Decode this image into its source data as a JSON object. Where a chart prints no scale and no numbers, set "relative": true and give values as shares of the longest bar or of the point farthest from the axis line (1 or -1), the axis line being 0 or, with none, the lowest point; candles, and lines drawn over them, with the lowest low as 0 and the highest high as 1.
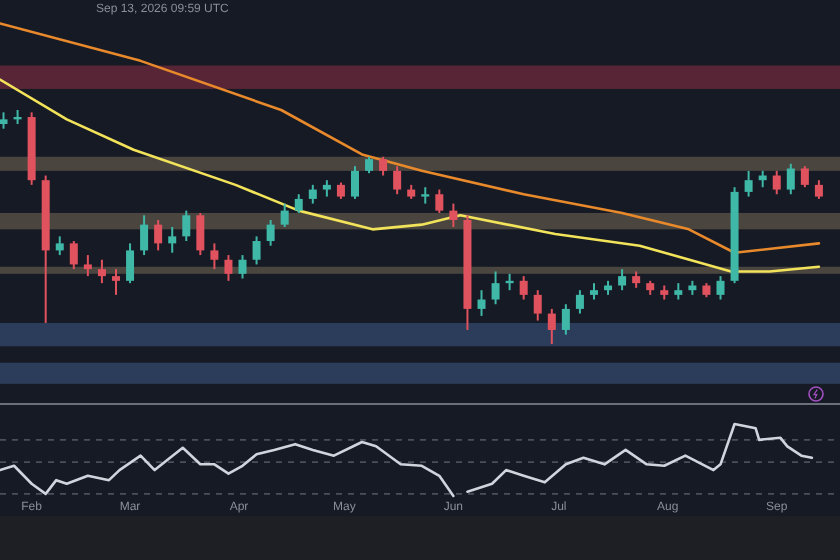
{
  "chart_data": [
    {
      "type": "candlestick",
      "relative": true,
      "annotations": [
        "Sep 13, 2026 09:59 UTC"
      ],
      "xlim": [
        "2026-01-23",
        "2026-09-19"
      ],
      "x": [
        "2026-01-24",
        "2026-01-28",
        "2026-02-01",
        "2026-02-05",
        "2026-02-09",
        "2026-02-13",
        "2026-02-17",
        "2026-02-21",
        "2026-02-25",
        "2026-03-01",
        "2026-03-05",
        "2026-03-09",
        "2026-03-13",
        "2026-03-17",
        "2026-03-21",
        "2026-03-25",
        "2026-03-29",
        "2026-04-02",
        "2026-04-06",
        "2026-04-10",
        "2026-04-14",
        "2026-04-18",
        "2026-04-22",
        "2026-04-26",
        "2026-04-30",
        "2026-05-04",
        "2026-05-08",
        "2026-05-12",
        "2026-05-16",
        "2026-05-20",
        "2026-05-24",
        "2026-05-28",
        "2026-06-01",
        "2026-06-05",
        "2026-06-09",
        "2026-06-13",
        "2026-06-17",
        "2026-06-21",
        "2026-06-25",
        "2026-06-29",
        "2026-07-03",
        "2026-07-07",
        "2026-07-11",
        "2026-07-15",
        "2026-07-19",
        "2026-07-23",
        "2026-07-27",
        "2026-07-31",
        "2026-08-04",
        "2026-08-08",
        "2026-08-12",
        "2026-08-16",
        "2026-08-20",
        "2026-08-24",
        "2026-08-28",
        "2026-09-01",
        "2026-09-05",
        "2026-09-09",
        "2026-09-13"
      ],
      "ohlc": [
        [
          0.94,
          0.99,
          0.92,
          0.96
        ],
        [
          0.96,
          1.0,
          0.94,
          0.97
        ],
        [
          0.97,
          0.99,
          0.68,
          0.7
        ],
        [
          0.7,
          0.72,
          0.09,
          0.4
        ],
        [
          0.4,
          0.46,
          0.38,
          0.43
        ],
        [
          0.43,
          0.44,
          0.32,
          0.34
        ],
        [
          0.34,
          0.38,
          0.29,
          0.32
        ],
        [
          0.32,
          0.36,
          0.26,
          0.29
        ],
        [
          0.29,
          0.32,
          0.21,
          0.27
        ],
        [
          0.27,
          0.43,
          0.26,
          0.4
        ],
        [
          0.4,
          0.55,
          0.38,
          0.51
        ],
        [
          0.51,
          0.53,
          0.4,
          0.43
        ],
        [
          0.43,
          0.5,
          0.39,
          0.46
        ],
        [
          0.46,
          0.57,
          0.44,
          0.55
        ],
        [
          0.55,
          0.56,
          0.38,
          0.4
        ],
        [
          0.4,
          0.43,
          0.32,
          0.36
        ],
        [
          0.36,
          0.38,
          0.27,
          0.3
        ],
        [
          0.3,
          0.38,
          0.28,
          0.36
        ],
        [
          0.36,
          0.46,
          0.34,
          0.44
        ],
        [
          0.44,
          0.53,
          0.42,
          0.51
        ],
        [
          0.51,
          0.6,
          0.5,
          0.57
        ],
        [
          0.57,
          0.64,
          0.56,
          0.62
        ],
        [
          0.62,
          0.68,
          0.6,
          0.66
        ],
        [
          0.66,
          0.7,
          0.63,
          0.68
        ],
        [
          0.68,
          0.69,
          0.62,
          0.63
        ],
        [
          0.63,
          0.76,
          0.62,
          0.74
        ],
        [
          0.74,
          0.8,
          0.73,
          0.79
        ],
        [
          0.79,
          0.8,
          0.72,
          0.74
        ],
        [
          0.74,
          0.76,
          0.64,
          0.66
        ],
        [
          0.66,
          0.68,
          0.62,
          0.63
        ],
        [
          0.63,
          0.67,
          0.6,
          0.64
        ],
        [
          0.64,
          0.66,
          0.56,
          0.57
        ],
        [
          0.57,
          0.6,
          0.5,
          0.53
        ],
        [
          0.53,
          0.55,
          0.06,
          0.15
        ],
        [
          0.15,
          0.23,
          0.12,
          0.19
        ],
        [
          0.19,
          0.31,
          0.17,
          0.26
        ],
        [
          0.26,
          0.3,
          0.23,
          0.27
        ],
        [
          0.27,
          0.29,
          0.19,
          0.21
        ],
        [
          0.21,
          0.23,
          0.1,
          0.13
        ],
        [
          0.13,
          0.15,
          0,
          0.06
        ],
        [
          0.06,
          0.17,
          0.04,
          0.15
        ],
        [
          0.15,
          0.23,
          0.13,
          0.21
        ],
        [
          0.21,
          0.26,
          0.19,
          0.23
        ],
        [
          0.23,
          0.27,
          0.21,
          0.25
        ],
        [
          0.25,
          0.32,
          0.23,
          0.29
        ],
        [
          0.29,
          0.31,
          0.24,
          0.26
        ],
        [
          0.26,
          0.27,
          0.21,
          0.23
        ],
        [
          0.23,
          0.25,
          0.19,
          0.21
        ],
        [
          0.21,
          0.26,
          0.19,
          0.23
        ],
        [
          0.23,
          0.27,
          0.21,
          0.25
        ],
        [
          0.25,
          0.26,
          0.2,
          0.21
        ],
        [
          0.21,
          0.29,
          0.19,
          0.27
        ],
        [
          0.27,
          0.67,
          0.26,
          0.65
        ],
        [
          0.65,
          0.74,
          0.63,
          0.7
        ],
        [
          0.7,
          0.74,
          0.67,
          0.72
        ],
        [
          0.72,
          0.74,
          0.64,
          0.66
        ],
        [
          0.66,
          0.77,
          0.64,
          0.75
        ],
        [
          0.75,
          0.76,
          0.67,
          0.68
        ],
        [
          0.68,
          0.7,
          0.62,
          0.63
        ]
      ],
      "series": [
        {
          "type": "line",
          "color": "#e8892b",
          "x": [
            "2026-01-23",
            "2026-03-04",
            "2026-04-13",
            "2026-05-06",
            "2026-05-23",
            "2026-06-21",
            "2026-07-19",
            "2026-08-07",
            "2026-08-20",
            "2026-09-13"
          ],
          "values": [
            1.37,
            1.21,
            1.0,
            0.81,
            0.74,
            0.64,
            0.56,
            0.49,
            0.39,
            0.43
          ]
        },
        {
          "type": "line",
          "color": "#f2e35a",
          "x": [
            "2026-01-23",
            "2026-02-11",
            "2026-03-02",
            "2026-03-31",
            "2026-04-18",
            "2026-05-09",
            "2026-05-23",
            "2026-06-03",
            "2026-06-30",
            "2026-07-24",
            "2026-08-19",
            "2026-08-30",
            "2026-09-13"
          ],
          "values": [
            1.13,
            0.96,
            0.83,
            0.68,
            0.57,
            0.49,
            0.51,
            0.55,
            0.47,
            0.42,
            0.31,
            0.31,
            0.33
          ]
        }
      ],
      "bands": [
        {
          "axis": "y",
          "from": 1.09,
          "to": 1.19,
          "color": "#6e2a3c"
        },
        {
          "axis": "y",
          "from": 0.74,
          "to": 0.8,
          "color": "#5c5548"
        },
        {
          "axis": "y",
          "from": 0.49,
          "to": 0.56,
          "color": "#5c5548"
        },
        {
          "axis": "y",
          "from": 0.3,
          "to": 0.33,
          "color": "#5c5548"
        },
        {
          "axis": "y",
          "from": -0.01,
          "to": 0.09,
          "color": "#34496e"
        },
        {
          "axis": "y",
          "from": -0.17,
          "to": -0.08,
          "color": "#34496e"
        }
      ]
    },
    {
      "type": "line",
      "relative": true,
      "color": "#d0d4dc",
      "xlim": [
        "2026-01-23",
        "2026-09-19"
      ],
      "xticks": [
        {
          "value": "2026-02-01",
          "label": "Feb"
        },
        {
          "value": "2026-03-01",
          "label": "Mar"
        },
        {
          "value": "2026-04-01",
          "label": "Apr"
        },
        {
          "value": "2026-05-01",
          "label": "May"
        },
        {
          "value": "2026-06-01",
          "label": "Jun"
        },
        {
          "value": "2026-07-01",
          "label": "Jul"
        },
        {
          "value": "2026-08-01",
          "label": "Aug"
        },
        {
          "value": "2026-09-01",
          "label": "Sep"
        }
      ],
      "x": [
        "2026-01-23",
        "2026-01-27",
        "2026-02-01",
        "2026-02-05",
        "2026-02-08",
        "2026-02-11",
        "2026-02-17",
        "2026-02-23",
        "2026-02-26",
        "2026-03-04",
        "2026-03-08",
        "2026-03-16",
        "2026-03-21",
        "2026-03-25",
        "2026-03-29",
        "2026-04-02",
        "2026-04-06",
        "2026-04-11",
        "2026-04-17",
        "2026-04-22",
        "2026-04-28",
        "2026-05-06",
        "2026-05-10",
        "2026-05-17",
        "2026-05-23",
        "2026-05-28",
        "2026-06-01",
        "2026-06-03",
        "2026-06-05",
        "2026-06-12",
        "2026-06-16",
        "2026-06-21",
        "2026-06-27",
        "2026-07-03",
        "2026-07-08",
        "2026-07-14",
        "2026-07-20",
        "2026-07-26",
        "2026-07-31",
        "2026-08-06",
        "2026-08-14",
        "2026-08-16",
        "2026-08-20",
        "2026-08-26",
        "2026-08-27",
        "2026-09-02",
        "2026-09-04",
        "2026-09-08",
        "2026-09-11"
      ],
      "values": [
        0.36,
        0.42,
        0.17,
        0.03,
        0.22,
        0.17,
        0.28,
        0.22,
        0.36,
        0.56,
        0.36,
        0.67,
        0.44,
        0.44,
        0.31,
        0.42,
        0.58,
        0.64,
        0.72,
        0.64,
        0.56,
        0.75,
        0.69,
        0.44,
        0.42,
        0.28,
        0.0,
        null,
        0.06,
        0.17,
        0.36,
        0.28,
        0.19,
        0.44,
        0.53,
        0.44,
        0.64,
        0.44,
        0.42,
        0.56,
        0.36,
        0.44,
        1.0,
        0.94,
        0.78,
        0.81,
        0.69,
        0.56,
        0.53
      ],
      "ref_lines": [
        {
          "axis": "y",
          "value": 0.78,
          "color": "#4a4f5c",
          "line_style": "dashed"
        },
        {
          "axis": "y",
          "value": 0.47,
          "color": "#4a4f5c",
          "line_style": "dashed"
        },
        {
          "axis": "y",
          "value": 0.03,
          "color": "#4a4f5c",
          "line_style": "dashed"
        }
      ]
    }
  ]
}
